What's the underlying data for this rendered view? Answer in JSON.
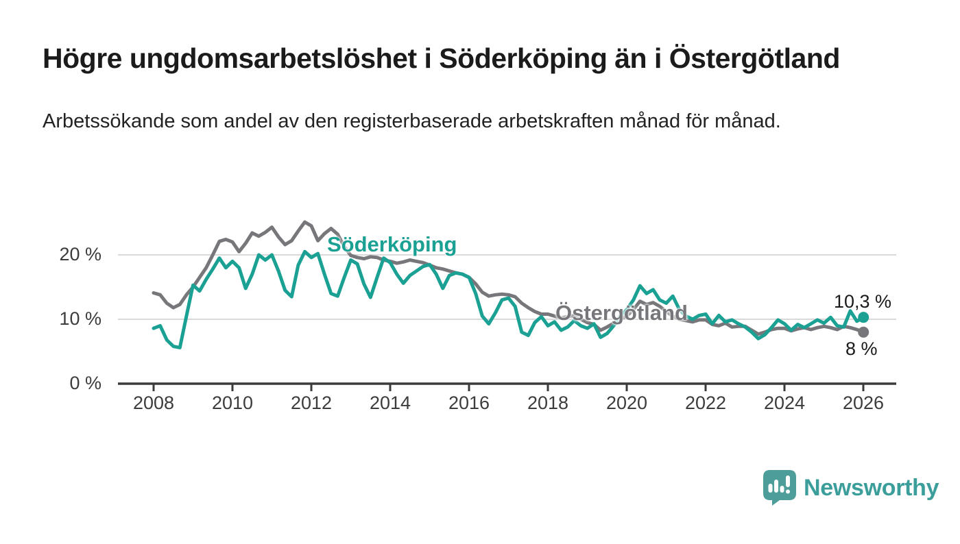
{
  "header": {
    "title": "Högre ungdomsarbetslöshet i Söderköping än i Östergötland",
    "subtitle": "Arbetssökande som andel av den registerbaserade arbetskraften månad för månad."
  },
  "chart_data": {
    "type": "line",
    "title": "Högre ungdomsarbetslöshet i Söderköping än i Östergötland",
    "subtitle": "Arbetssökande som andel av den registerbaserade arbetskraften månad för månad.",
    "unit": "%",
    "x_start_year": 2008.0,
    "x_step_years": 0.1667,
    "x_end_year": 2026.0,
    "xticks": [
      2008,
      2010,
      2012,
      2014,
      2016,
      2018,
      2020,
      2022,
      2024,
      2026
    ],
    "yticks": [
      {
        "value": 20,
        "label": "20 %"
      },
      {
        "value": 10,
        "label": "10 %"
      },
      {
        "value": 0,
        "label": "0 %"
      }
    ],
    "ylim": [
      0,
      27
    ],
    "grid": "horizontal",
    "legend": "inline-labels",
    "colors": {
      "soderkoping": "#1BA094",
      "ostergotland": "#77777B",
      "gridline": "#d9d9d9",
      "axis": "#3b3b3b",
      "value_label": "#1a1a1a"
    },
    "series": [
      {
        "name": "Söderköping",
        "color": "#1BA094",
        "end_label": "10,3 %",
        "end_value": 10.3,
        "values": [
          8.6,
          9.0,
          6.8,
          5.8,
          5.6,
          10.5,
          15.3,
          14.4,
          16.2,
          17.8,
          19.5,
          18.0,
          19.0,
          18.0,
          14.8,
          17.0,
          20.0,
          19.2,
          20.0,
          17.5,
          14.5,
          13.5,
          18.4,
          20.5,
          19.6,
          20.2,
          17.0,
          14.0,
          13.6,
          16.5,
          19.2,
          18.6,
          15.5,
          13.4,
          16.5,
          19.5,
          18.8,
          17.0,
          15.6,
          16.8,
          17.5,
          18.2,
          18.5,
          17.0,
          14.8,
          16.8,
          17.2,
          17.0,
          16.5,
          14.0,
          10.5,
          9.3,
          11.0,
          13.0,
          13.3,
          12.0,
          8.0,
          7.5,
          9.5,
          10.4,
          9.0,
          9.6,
          8.3,
          8.8,
          9.8,
          9.0,
          8.6,
          9.3,
          7.2,
          7.8,
          9.0,
          10.5,
          11.5,
          13.0,
          15.2,
          14.0,
          14.6,
          13.0,
          12.5,
          13.6,
          11.5,
          10.5,
          10.0,
          10.6,
          10.8,
          9.3,
          10.6,
          9.6,
          9.9,
          9.3,
          8.8,
          8.0,
          7.0,
          7.6,
          8.7,
          9.9,
          9.3,
          8.3,
          9.2,
          8.7,
          9.3,
          9.9,
          9.4,
          10.3,
          9.0,
          8.8,
          11.3,
          9.7,
          10.3
        ]
      },
      {
        "name": "Östergötland",
        "color": "#77777B",
        "end_label": "8 %",
        "end_value": 8.0,
        "values": [
          14.1,
          13.8,
          12.5,
          11.8,
          12.3,
          13.8,
          15.0,
          16.5,
          18.0,
          20.0,
          22.1,
          22.4,
          22.0,
          20.5,
          21.8,
          23.4,
          22.9,
          23.5,
          24.3,
          22.8,
          21.6,
          22.2,
          23.7,
          25.1,
          24.5,
          22.2,
          23.3,
          24.1,
          23.2,
          21.3,
          19.9,
          19.6,
          19.4,
          19.7,
          19.6,
          19.2,
          19.0,
          18.7,
          18.9,
          19.2,
          19.0,
          18.8,
          18.4,
          18.0,
          17.8,
          17.5,
          17.2,
          17.0,
          16.5,
          15.5,
          14.2,
          13.6,
          13.8,
          13.9,
          13.8,
          13.5,
          12.5,
          11.8,
          11.2,
          10.8,
          10.8,
          10.5,
          10.2,
          10.4,
          10.6,
          10.0,
          9.5,
          9.2,
          8.3,
          8.8,
          9.4,
          10.0,
          10.5,
          11.5,
          12.8,
          12.3,
          12.6,
          12.0,
          11.2,
          10.5,
          10.0,
          9.8,
          9.6,
          9.9,
          9.9,
          9.2,
          9.0,
          9.4,
          8.8,
          8.9,
          8.9,
          8.3,
          7.7,
          8.0,
          8.4,
          8.6,
          8.6,
          8.2,
          8.5,
          8.7,
          8.4,
          8.7,
          8.9,
          8.7,
          8.4,
          8.9,
          8.7,
          8.4,
          8.0
        ]
      }
    ]
  },
  "footer": {
    "brand": "Newsworthy",
    "logo_icon": "bar-chart-speech-bubble-icon",
    "brand_color": "#3C9E9A",
    "icon_color": "#4D9E9A"
  }
}
